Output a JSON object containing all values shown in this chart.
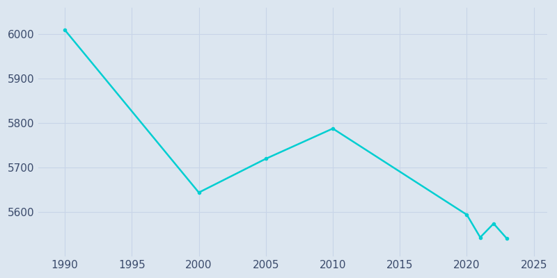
{
  "years": [
    1990,
    2000,
    2005,
    2010,
    2020,
    2021,
    2022,
    2023
  ],
  "population": [
    6010,
    5644,
    5720,
    5788,
    5594,
    5543,
    5574,
    5540
  ],
  "line_color": "#00CED1",
  "fig_bg_color": "#dce6f0",
  "plot_bg_color": "#dce6f0",
  "xlim": [
    1988,
    2026
  ],
  "ylim": [
    5500,
    6060
  ],
  "xticks": [
    1990,
    1995,
    2000,
    2005,
    2010,
    2015,
    2020,
    2025
  ],
  "yticks": [
    5600,
    5700,
    5800,
    5900,
    6000
  ],
  "grid_color": "#c8d4e8",
  "tick_color": "#3a4a6b",
  "tick_fontsize": 11,
  "line_width": 1.8,
  "marker": "o",
  "marker_size": 3
}
